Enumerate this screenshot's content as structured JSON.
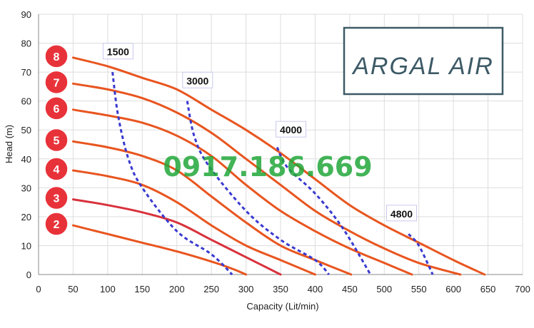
{
  "chart_data": {
    "type": "line",
    "xlabel": "Capacity (Lit/min)",
    "ylabel": "Head (m)",
    "xlim": [
      0,
      700
    ],
    "ylim": [
      0,
      90
    ],
    "xticks": [
      0,
      50,
      100,
      150,
      200,
      250,
      300,
      350,
      400,
      450,
      500,
      550,
      600,
      650,
      700
    ],
    "yticks": [
      0,
      10,
      20,
      30,
      40,
      50,
      60,
      70,
      80,
      90
    ],
    "grid": true,
    "pressure_series": [
      {
        "name": "2",
        "points": [
          [
            50,
            17
          ],
          [
            100,
            14
          ],
          [
            150,
            11
          ],
          [
            200,
            8
          ],
          [
            250,
            4.5
          ],
          [
            280,
            2
          ],
          [
            300,
            0
          ]
        ]
      },
      {
        "name": "3",
        "points": [
          [
            50,
            26
          ],
          [
            100,
            24
          ],
          [
            150,
            21.5
          ],
          [
            200,
            18
          ],
          [
            250,
            12
          ],
          [
            300,
            6
          ],
          [
            350,
            0
          ]
        ]
      },
      {
        "name": "4",
        "points": [
          [
            50,
            36
          ],
          [
            100,
            34
          ],
          [
            150,
            31
          ],
          [
            200,
            25
          ],
          [
            250,
            17
          ],
          [
            300,
            10
          ],
          [
            350,
            5
          ],
          [
            400,
            0
          ]
        ]
      },
      {
        "name": "5",
        "points": [
          [
            50,
            46
          ],
          [
            100,
            44
          ],
          [
            150,
            41
          ],
          [
            200,
            36
          ],
          [
            250,
            27
          ],
          [
            300,
            18
          ],
          [
            350,
            10
          ],
          [
            400,
            5
          ],
          [
            452,
            0
          ]
        ]
      },
      {
        "name": "6",
        "points": [
          [
            50,
            57
          ],
          [
            100,
            55
          ],
          [
            150,
            52.5
          ],
          [
            200,
            48
          ],
          [
            250,
            41
          ],
          [
            300,
            31
          ],
          [
            350,
            22
          ],
          [
            400,
            15
          ],
          [
            450,
            9
          ],
          [
            500,
            4
          ],
          [
            540,
            0
          ]
        ]
      },
      {
        "name": "7",
        "points": [
          [
            50,
            66
          ],
          [
            100,
            64
          ],
          [
            150,
            61
          ],
          [
            200,
            56
          ],
          [
            250,
            49
          ],
          [
            300,
            40
          ],
          [
            350,
            31
          ],
          [
            400,
            22
          ],
          [
            450,
            15
          ],
          [
            500,
            9
          ],
          [
            550,
            4
          ],
          [
            610,
            0
          ]
        ]
      },
      {
        "name": "8",
        "points": [
          [
            50,
            75
          ],
          [
            100,
            72
          ],
          [
            150,
            68
          ],
          [
            200,
            64
          ],
          [
            250,
            57
          ],
          [
            300,
            50
          ],
          [
            350,
            42
          ],
          [
            400,
            33
          ],
          [
            450,
            24
          ],
          [
            500,
            17
          ],
          [
            550,
            11
          ],
          [
            600,
            5
          ],
          [
            645,
            0
          ]
        ]
      }
    ],
    "speed_series": [
      {
        "name": "1500",
        "points": [
          [
            107,
            70
          ],
          [
            115,
            55
          ],
          [
            130,
            40
          ],
          [
            150,
            30
          ],
          [
            200,
            15
          ],
          [
            250,
            7
          ],
          [
            280,
            0
          ]
        ]
      },
      {
        "name": "3000",
        "points": [
          [
            215,
            60
          ],
          [
            225,
            48
          ],
          [
            245,
            38
          ],
          [
            300,
            22
          ],
          [
            350,
            12
          ],
          [
            400,
            5
          ],
          [
            420,
            0
          ]
        ]
      },
      {
        "name": "4000",
        "points": [
          [
            345,
            44
          ],
          [
            360,
            37
          ],
          [
            400,
            28
          ],
          [
            440,
            16
          ],
          [
            480,
            0
          ]
        ]
      },
      {
        "name": "4800",
        "points": [
          [
            535,
            14
          ],
          [
            550,
            10
          ],
          [
            570,
            0
          ]
        ]
      }
    ],
    "speed_label_positions": [
      [
        115,
        77
      ],
      [
        230,
        67
      ],
      [
        365,
        50
      ],
      [
        525,
        21
      ]
    ]
  },
  "watermark": "0917.186.669",
  "logo": {
    "text": "ARGAL AIR",
    "border_color": "#3d5a66"
  },
  "colors": {
    "pressure_curve": "#e8551f",
    "pressure_curve_highlight": "#d8323c",
    "speed_curve": "#3a3ad0",
    "badge_fill": "#e8323a",
    "grid": "#dddddd",
    "watermark": "#22a83a"
  }
}
